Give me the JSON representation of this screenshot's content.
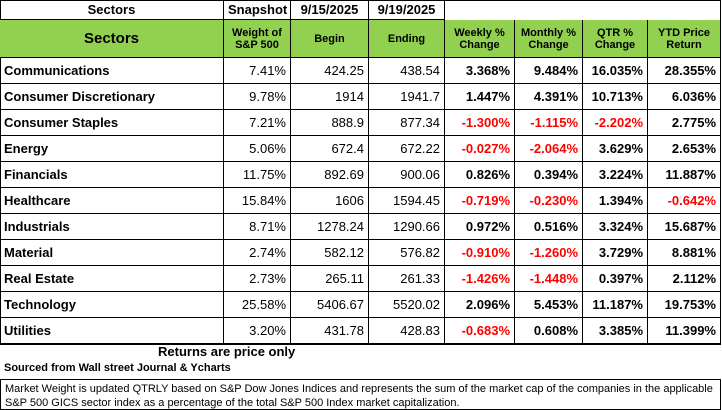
{
  "top": {
    "cells": [
      "Sectors",
      "Snapshot",
      "9/15/2025",
      "9/19/2025"
    ]
  },
  "table": {
    "header": [
      "Sectors",
      "Weight of S&P 500",
      "Begin",
      "Ending",
      "Weekly % Change",
      "Monthly % Change",
      "QTR % Change",
      "YTD Price Return"
    ],
    "rows": [
      [
        "Communications",
        "7.41%",
        "424.25",
        "438.54",
        "3.368%",
        "9.484%",
        "16.035%",
        "28.355%"
      ],
      [
        "Consumer Discretionary",
        "9.78%",
        "1914",
        "1941.7",
        "1.447%",
        "4.391%",
        "10.713%",
        "6.036%"
      ],
      [
        "Consumer Staples",
        "7.21%",
        "888.9",
        "877.34",
        "-1.300%",
        "-1.115%",
        "-2.202%",
        "2.775%"
      ],
      [
        "Energy",
        "5.06%",
        "672.4",
        "672.22",
        "-0.027%",
        "-2.064%",
        "3.629%",
        "2.653%"
      ],
      [
        "Financials",
        "11.75%",
        "892.69",
        "900.06",
        "0.826%",
        "0.394%",
        "3.224%",
        "11.887%"
      ],
      [
        "Healthcare",
        "15.84%",
        "1606",
        "1594.45",
        "-0.719%",
        "-0.230%",
        "1.394%",
        "-0.642%"
      ],
      [
        "Industrials",
        "8.71%",
        "1278.24",
        "1290.66",
        "0.972%",
        "0.516%",
        "3.324%",
        "15.687%"
      ],
      [
        "Material",
        "2.74%",
        "582.12",
        "576.82",
        "-0.910%",
        "-1.260%",
        "3.729%",
        "8.881%"
      ],
      [
        "Real Estate",
        "2.73%",
        "265.11",
        "261.33",
        "-1.426%",
        "-1.448%",
        "0.397%",
        "2.112%"
      ],
      [
        "Technology",
        "25.58%",
        "5406.67",
        "5520.02",
        "2.096%",
        "5.453%",
        "11.187%",
        "19.753%"
      ],
      [
        "Utilities",
        "3.20%",
        "431.78",
        "428.83",
        "-0.683%",
        "0.608%",
        "3.385%",
        "11.399%"
      ]
    ]
  },
  "returns_note": "Returns are price only",
  "source": "Sourced from Wall street Journal & Ycharts",
  "footnote": "Market Weight is updated QTRLY based on S&P Dow Jones Indices and represents the sum of the market cap of the companies in the applicable S&P 500 GICS sector index as a percentage of the total S&P 500 Index market capitalization."
}
